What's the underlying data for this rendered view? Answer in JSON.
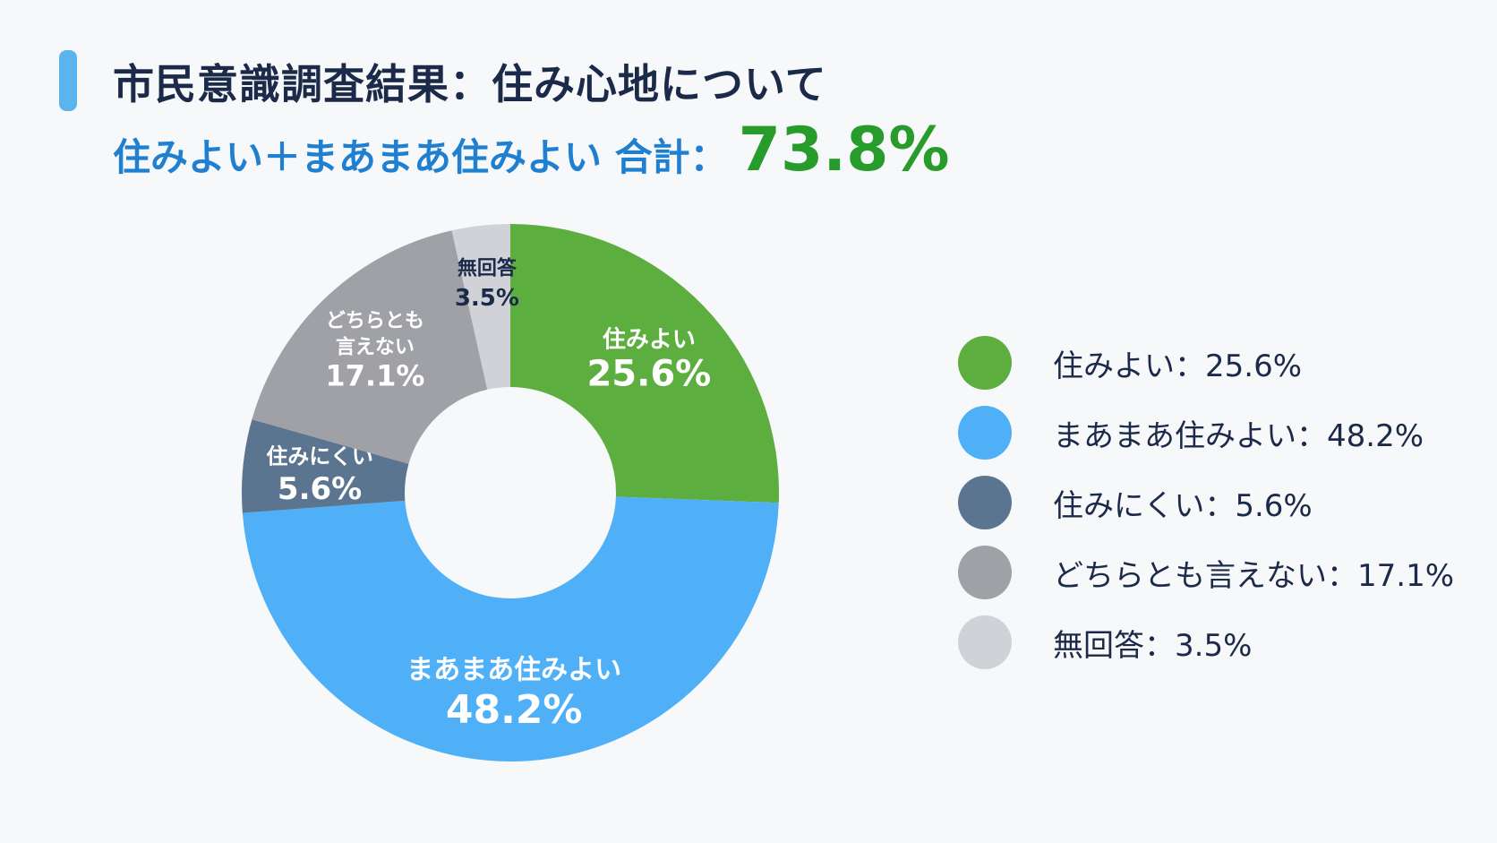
{
  "header": {
    "title": "市民意識調査結果：住み心地について",
    "subtitle_label": "住みよい＋まあまあ住みよい 合計：",
    "subtitle_value": "73.8%"
  },
  "chart_data": {
    "type": "pie",
    "donut": true,
    "title": "市民意識調査結果：住み心地について",
    "categories": [
      "住みよい",
      "まあまあ住みよい",
      "住みにくい",
      "どちらとも言えない",
      "無回答"
    ],
    "values": [
      25.6,
      48.2,
      5.6,
      17.1,
      3.5
    ],
    "colors": [
      "#5cae3e",
      "#4fb0f7",
      "#5b7590",
      "#9fa1a6",
      "#d0d2d7"
    ],
    "slice_labels": [
      {
        "name_lines": [
          "住みよい"
        ],
        "value": "25.6%"
      },
      {
        "name_lines": [
          "まあまあ住みよい"
        ],
        "value": "48.2%"
      },
      {
        "name_lines": [
          "住みにくい"
        ],
        "value": "5.6%"
      },
      {
        "name_lines": [
          "どちらとも",
          "言えない"
        ],
        "value": "17.1%"
      },
      {
        "name_lines": [
          "無回答"
        ],
        "value": "3.5%"
      }
    ],
    "legend": [
      {
        "text": "住みよい：25.6%",
        "color": "#5cae3e"
      },
      {
        "text": "まあまあ住みよい：48.2%",
        "color": "#4fb0f7"
      },
      {
        "text": "住みにくい：5.6%",
        "color": "#5b7590"
      },
      {
        "text": "どちらとも言えない：17.1%",
        "color": "#9fa1a6"
      },
      {
        "text": "無回答：3.5%",
        "color": "#d0d2d7"
      }
    ],
    "legend_position": "right"
  }
}
